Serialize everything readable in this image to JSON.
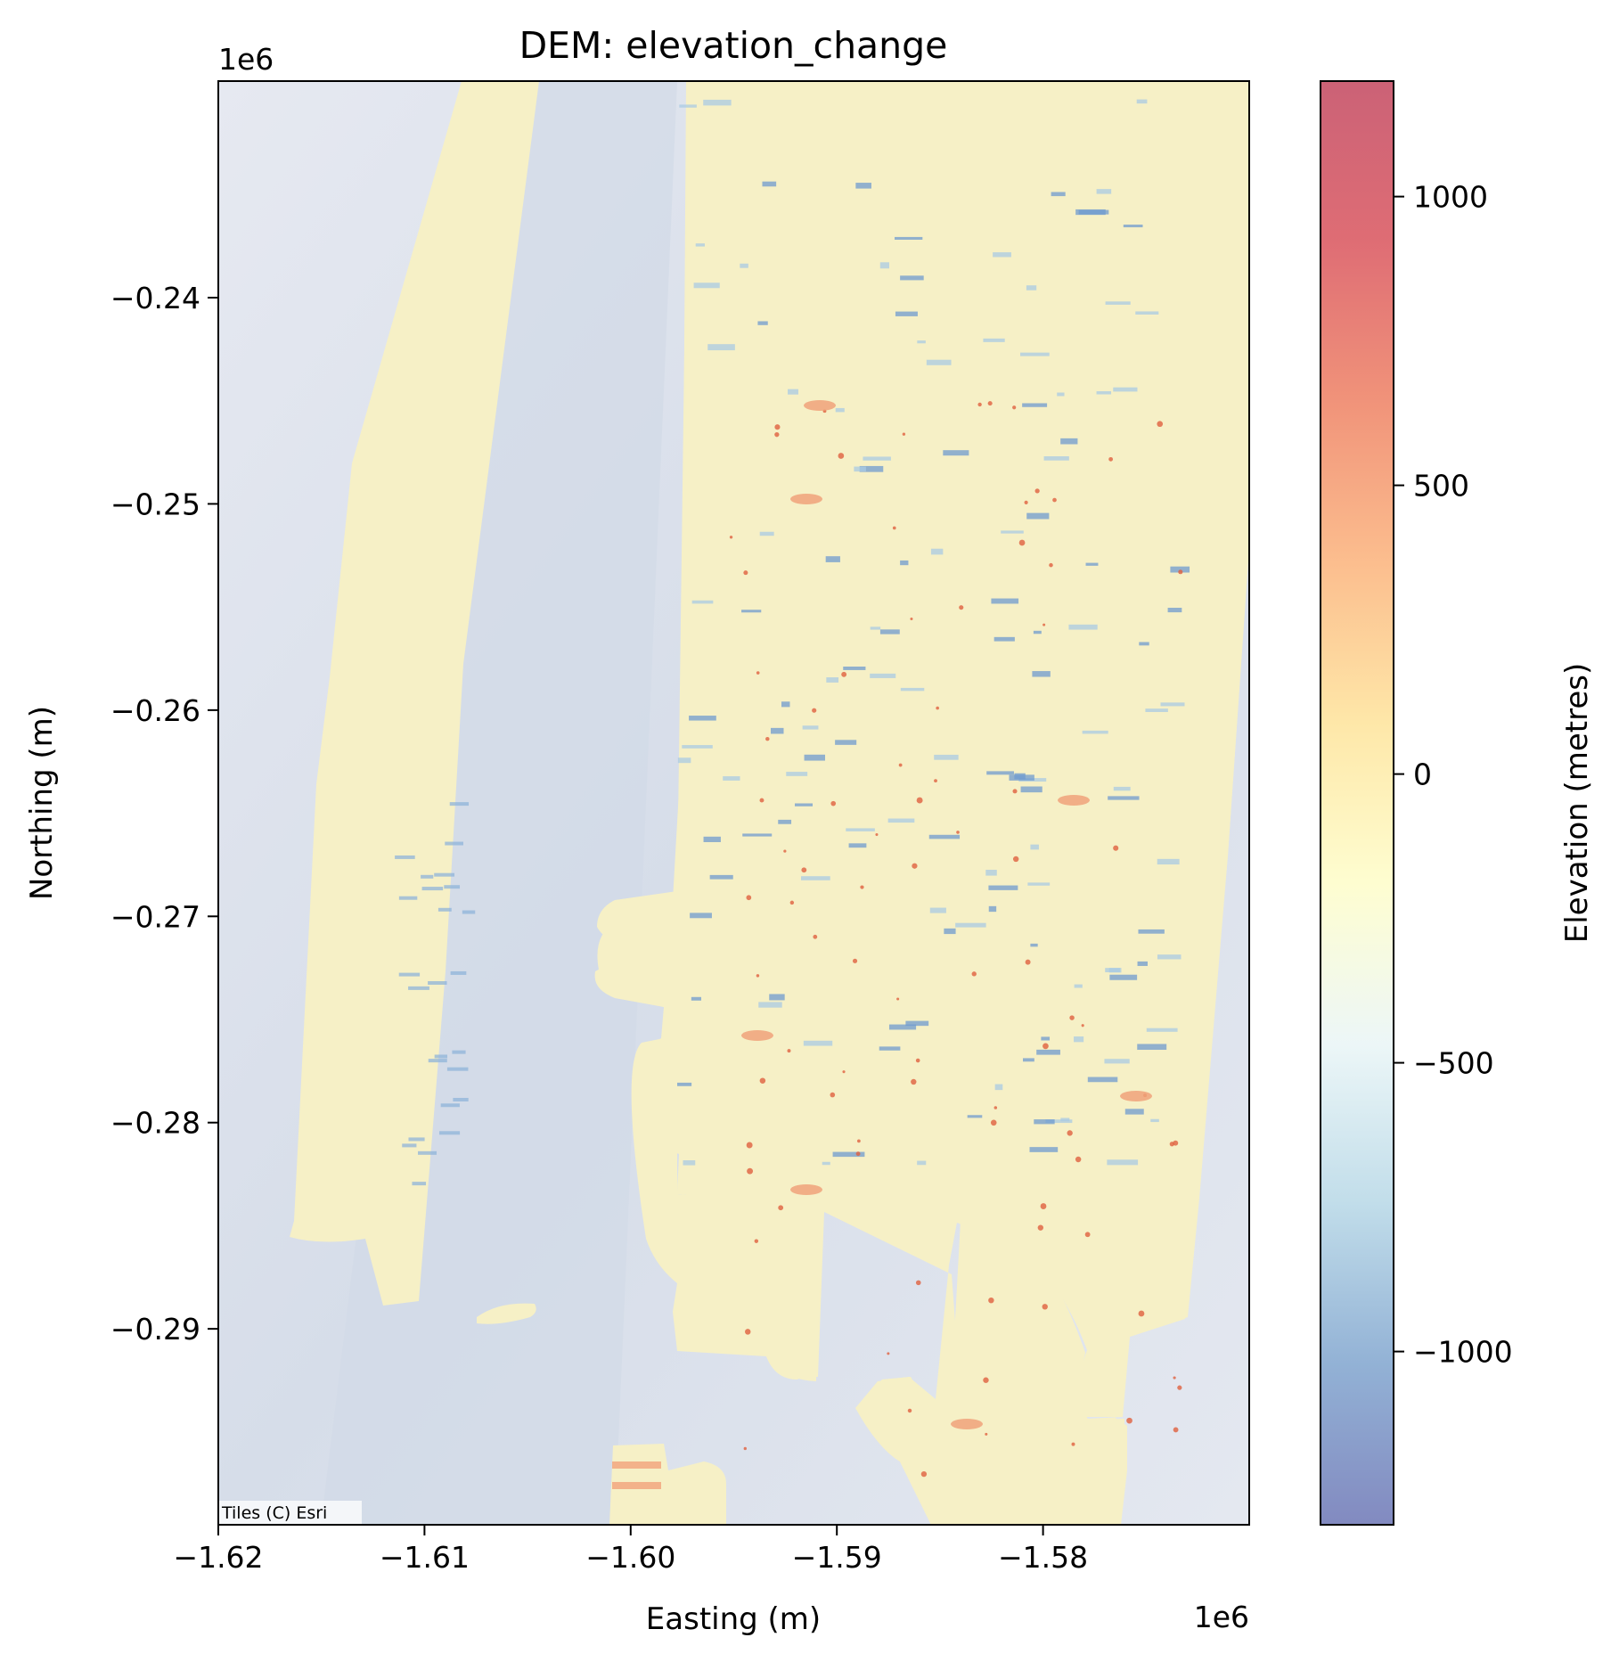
{
  "title": "DEM: elevation_change",
  "attribution": "Tiles (C) Esri",
  "x_axis": {
    "label": "Easting (m)",
    "offset_label": "1e6",
    "range": [
      -1.62,
      -1.57
    ],
    "ticks": [
      "−1.62",
      "−1.61",
      "−1.60",
      "−1.59",
      "−1.58"
    ],
    "tick_values": [
      -1.62,
      -1.61,
      -1.6,
      -1.59,
      -1.58
    ]
  },
  "y_axis": {
    "label": "Northing (m)",
    "offset_label": "1e6",
    "range": [
      -0.2995,
      -0.2295
    ],
    "ticks": [
      "−0.24",
      "−0.25",
      "−0.26",
      "−0.27",
      "−0.28",
      "−0.29"
    ],
    "tick_values": [
      -0.24,
      -0.25,
      -0.26,
      -0.27,
      -0.28,
      -0.29
    ]
  },
  "colorbar": {
    "label": "Elevation (metres)",
    "colormap": "RdYlBu_r",
    "range": [
      -1300,
      1200
    ],
    "ticks": [
      "1000",
      "500",
      "0",
      "−500",
      "−1000"
    ],
    "tick_values": [
      1000,
      500,
      0,
      -500,
      -1000
    ],
    "colors": [
      "#6c75b5",
      "#7fa4ce",
      "#b6d7e6",
      "#e9f5f6",
      "#fefdc8",
      "#fee399",
      "#fbb27a",
      "#ee8062",
      "#d9535c",
      "#c2465e"
    ]
  },
  "basemap": {
    "color": "#dfe4ee"
  },
  "dem_fill_color": "#f6f0c6"
}
